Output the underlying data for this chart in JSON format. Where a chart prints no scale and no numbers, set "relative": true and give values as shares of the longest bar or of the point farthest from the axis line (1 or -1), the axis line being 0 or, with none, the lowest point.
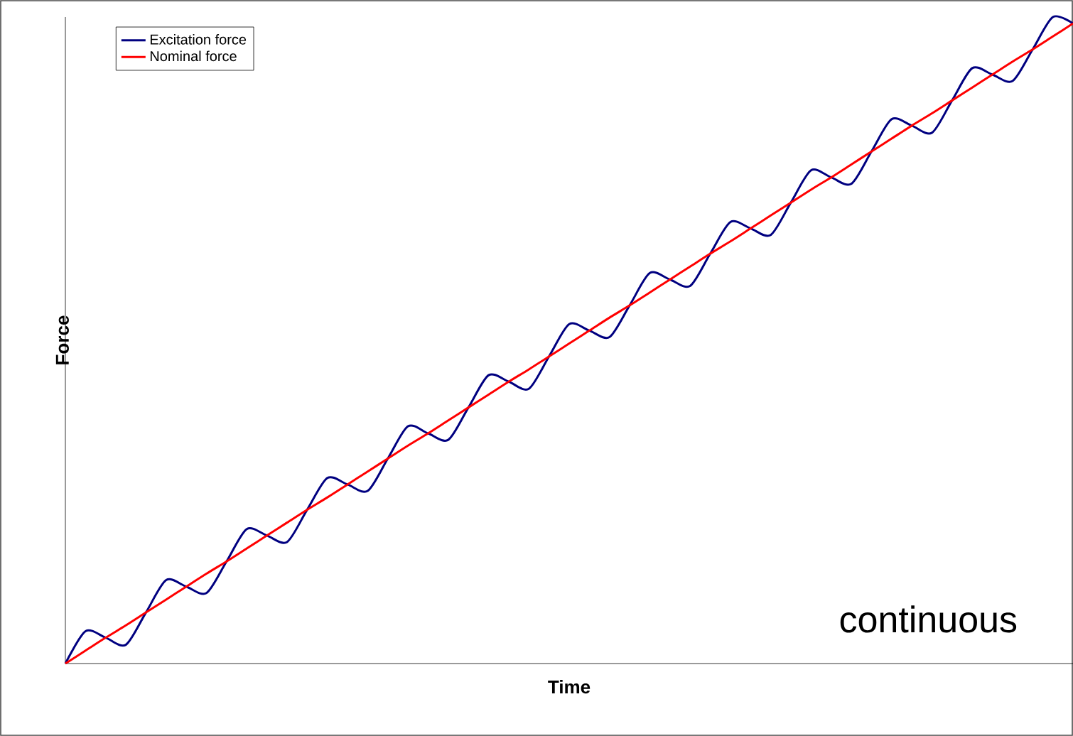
{
  "chart_data": {
    "type": "line",
    "xlabel": "Time",
    "ylabel": "Force",
    "relative": true,
    "legend": "top left",
    "annotations": [
      "continuous"
    ],
    "categories": [
      null,
      null,
      null,
      null,
      null,
      null,
      null,
      null,
      null,
      null,
      null,
      null,
      null,
      null,
      null,
      null,
      null,
      null,
      null,
      null,
      null,
      null,
      null,
      null,
      null,
      null,
      null,
      null,
      null,
      null,
      null,
      null,
      null,
      null,
      null,
      null,
      null,
      null,
      null,
      null,
      null,
      null,
      null,
      null,
      null,
      null,
      null,
      null,
      null,
      null,
      null
    ],
    "series": [
      {
        "name": "Excitation force",
        "color": "#000080",
        "values": [
          0,
          0.05,
          0.04,
          0.029,
          0.079,
          0.129,
          0.119,
          0.109,
          0.158,
          0.208,
          0.198,
          0.188,
          0.238,
          0.287,
          0.277,
          0.267,
          0.317,
          0.367,
          0.356,
          0.346,
          0.396,
          0.446,
          0.436,
          0.425,
          0.475,
          0.525,
          0.515,
          0.505,
          0.554,
          0.604,
          0.594,
          0.584,
          0.634,
          0.683,
          0.673,
          0.663,
          0.713,
          0.763,
          0.752,
          0.742,
          0.792,
          0.842,
          0.832,
          0.821,
          0.871,
          0.921,
          0.911,
          0.901,
          0.95,
          1.0,
          0.99
        ]
      },
      {
        "name": "Nominal force",
        "color": "#ff0000",
        "values": [
          0,
          0.02,
          0.04,
          0.059,
          0.079,
          0.099,
          0.119,
          0.139,
          0.158,
          0.178,
          0.198,
          0.218,
          0.238,
          0.257,
          0.277,
          0.297,
          0.317,
          0.337,
          0.356,
          0.376,
          0.396,
          0.416,
          0.436,
          0.455,
          0.475,
          0.495,
          0.515,
          0.535,
          0.554,
          0.574,
          0.594,
          0.614,
          0.634,
          0.653,
          0.673,
          0.693,
          0.713,
          0.733,
          0.752,
          0.772,
          0.792,
          0.812,
          0.832,
          0.851,
          0.871,
          0.891,
          0.911,
          0.931,
          0.95,
          0.97,
          0.99
        ]
      }
    ]
  }
}
